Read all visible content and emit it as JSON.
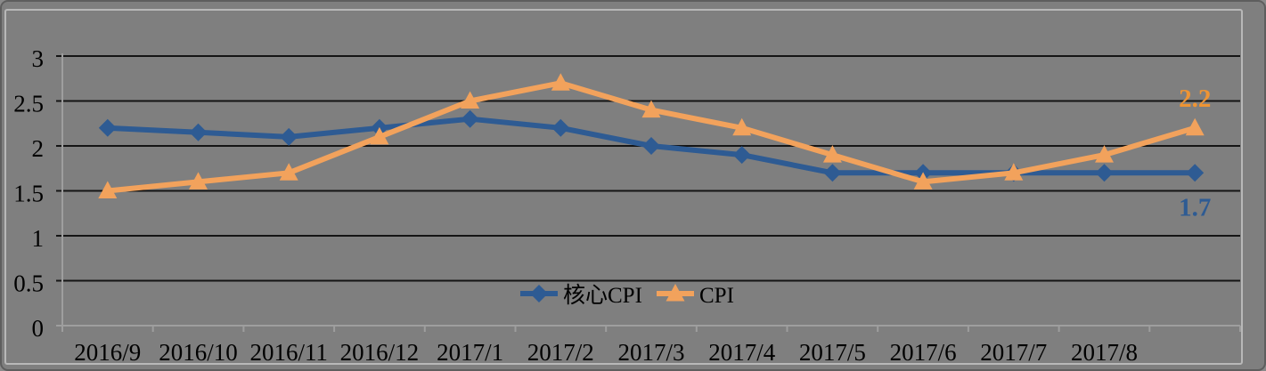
{
  "frame": {
    "background": "#7f7f7f",
    "outer_border_color": "#5e5e5e",
    "inner_border_color": "#b8b8b8"
  },
  "chart_data": {
    "type": "line",
    "title": "",
    "xlabel": "",
    "ylabel": "",
    "background": "#7f7f7f",
    "grid": true,
    "gridline_color": "#141414",
    "axis_color": "#9e9e9e",
    "text_color": "#000000",
    "ylim": [
      0,
      3
    ],
    "ytick_step": 0.5,
    "ytick_labels": [
      "0",
      "0.5",
      "1",
      "1.5",
      "2",
      "2.5",
      "3"
    ],
    "categories": [
      "2016/9",
      "2016/10",
      "2016/11",
      "2016/12",
      "2017/1",
      "2017/2",
      "2017/3",
      "2017/4",
      "2017/5",
      "2017/6",
      "2017/7",
      "2017/8",
      ""
    ],
    "legend_position": "bottom-center",
    "series": [
      {
        "id": "core-cpi",
        "name": "核心CPI",
        "color": "#2e5b93",
        "marker": "diamond",
        "values": [
          2.2,
          2.15,
          2.1,
          2.2,
          2.3,
          2.2,
          2.0,
          1.9,
          1.7,
          1.7,
          1.7,
          1.7,
          1.7
        ],
        "end_label": {
          "text": "1.7",
          "position": "below",
          "color": "#2e5b93"
        }
      },
      {
        "id": "cpi",
        "name": "CPI",
        "color": "#f2a25c",
        "marker": "triangle",
        "values": [
          1.5,
          1.6,
          1.7,
          2.1,
          2.5,
          2.7,
          2.4,
          2.2,
          1.9,
          1.6,
          1.7,
          1.9,
          2.2
        ],
        "end_label": {
          "text": "2.2",
          "position": "above",
          "color": "#ee9434"
        }
      }
    ]
  }
}
